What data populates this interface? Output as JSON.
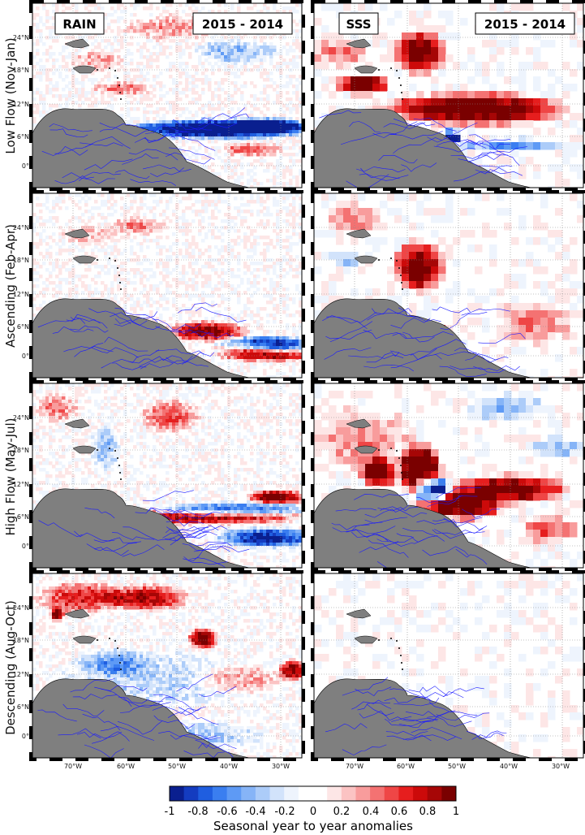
{
  "figure": {
    "rows": [
      {
        "label": "Low Flow (Nov-Jan)"
      },
      {
        "label": "Ascending (Feb-Apr)"
      },
      {
        "label": "High Flow (May-Jul)"
      },
      {
        "label": "Descending (Aug-Oct)"
      }
    ],
    "column_titles": {
      "left": {
        "variable": "RAIN",
        "period": "2015 - 2014"
      },
      "right": {
        "variable": "SSS",
        "period": "2015 - 2014"
      }
    },
    "lat_ticks": [
      "24°N",
      "18°N",
      "12°N",
      "6°N",
      "0°"
    ],
    "lon_ticks": [
      "70°W",
      "60°W",
      "50°W",
      "40°W",
      "30°W"
    ],
    "colorbar": {
      "label": "Seasonal year to year anomalies",
      "ticks": [
        "-1",
        "-0.8",
        "-0.6",
        "-0.4",
        "-0.2",
        "0",
        "0.2",
        "0.4",
        "0.6",
        "0.8",
        "1"
      ],
      "range": [
        -1,
        1
      ],
      "colors": [
        "#0a1f8f",
        "#143cc0",
        "#1f5ee0",
        "#3a7ef0",
        "#5e9af5",
        "#86b4f7",
        "#acccf9",
        "#d2e3fb",
        "#eef4fd",
        "#ffffff",
        "#ffffff",
        "#fde6e6",
        "#fbc3c3",
        "#f89c9c",
        "#f47272",
        "#ef4646",
        "#e61e1e",
        "#cc0a0a",
        "#a60606",
        "#7a0000"
      ]
    },
    "colors": {
      "land": "#7f7f7f",
      "rivers": "#1a1aff",
      "grid": "#888888"
    }
  }
}
